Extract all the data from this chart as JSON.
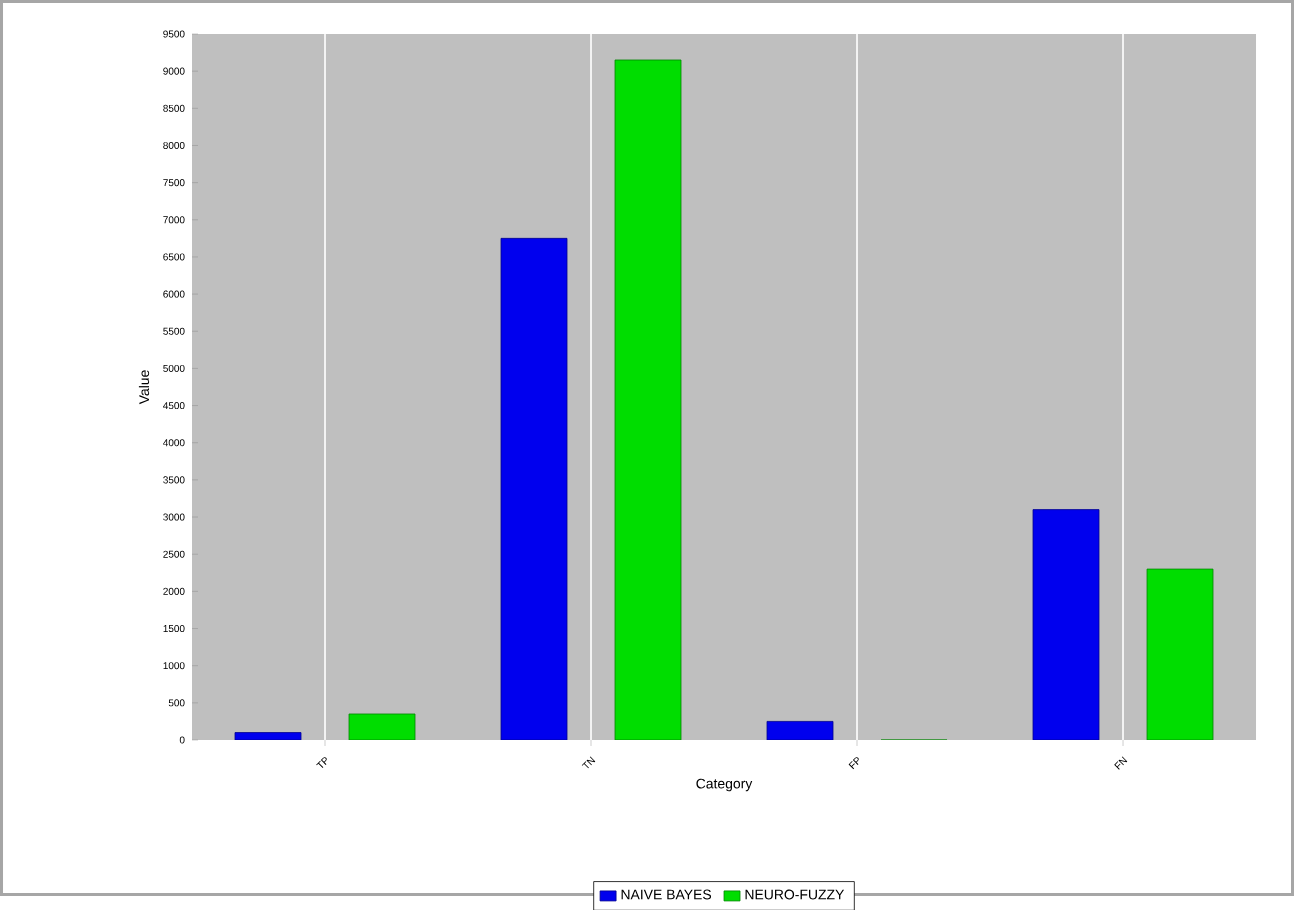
{
  "chart_data": {
    "type": "bar",
    "xlabel": "Category",
    "ylabel": "Value",
    "categories": [
      "TP",
      "TN",
      "FP",
      "FN"
    ],
    "series": [
      {
        "name": "NAIVE BAYES",
        "color": "#0000ee",
        "values": [
          100,
          6750,
          250,
          3100
        ]
      },
      {
        "name": "NEURO-FUZZY",
        "color": "#00dd00",
        "values": [
          350,
          9150,
          0,
          2300
        ]
      }
    ],
    "ylim": [
      0,
      9500
    ],
    "yticks": [
      0,
      500,
      1000,
      1500,
      2000,
      2500,
      3000,
      3500,
      4000,
      4500,
      5000,
      5500,
      6000,
      6500,
      7000,
      7500,
      8000,
      8500,
      9000,
      9500
    ],
    "grid": "x",
    "legend": "bottom"
  }
}
